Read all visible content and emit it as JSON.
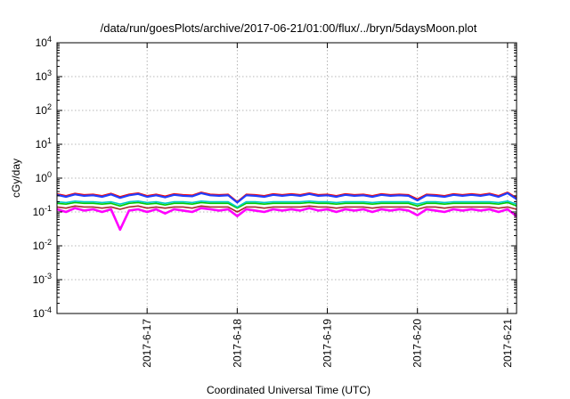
{
  "chart_data": {
    "type": "line",
    "title": "/data/run/goesPlots/archive/2017-06-21/01:00/flux/../bryn/5daysMoon.plot",
    "xlabel": "Coordinated Universal Time (UTC)",
    "ylabel": "cGy/day",
    "yscale": "log",
    "ylim": [
      0.0001,
      10000
    ],
    "xlim": [
      16.0,
      21.1
    ],
    "grid": true,
    "x_unit": "day of June 2017",
    "xticks": [
      {
        "value": 17,
        "label": "2017-6-17"
      },
      {
        "value": 18,
        "label": "2017-6-18"
      },
      {
        "value": 19,
        "label": "2017-6-19"
      },
      {
        "value": 20,
        "label": "2017-6-20"
      },
      {
        "value": 21,
        "label": "2017-6-21"
      }
    ],
    "yticks": [
      {
        "value": 0.0001,
        "base": "10",
        "exp": "-4"
      },
      {
        "value": 0.001,
        "base": "10",
        "exp": "-3"
      },
      {
        "value": 0.01,
        "base": "10",
        "exp": "-2"
      },
      {
        "value": 0.1,
        "base": "10",
        "exp": "-1"
      },
      {
        "value": 1,
        "base": "10",
        "exp": "0"
      },
      {
        "value": 10,
        "base": "10",
        "exp": "1"
      },
      {
        "value": 100,
        "base": "10",
        "exp": "2"
      },
      {
        "value": 1000,
        "base": "10",
        "exp": "3"
      },
      {
        "value": 10000,
        "base": "10",
        "exp": "4"
      }
    ],
    "series": [
      {
        "color": "#ff00ff",
        "values": [
          0.12,
          0.1,
          0.13,
          0.11,
          0.12,
          0.1,
          0.12,
          0.03,
          0.11,
          0.12,
          0.1,
          0.12,
          0.09,
          0.12,
          0.11,
          0.1,
          0.13,
          0.12,
          0.11,
          0.12,
          0.075,
          0.12,
          0.11,
          0.1,
          0.12,
          0.11,
          0.12,
          0.11,
          0.13,
          0.11,
          0.12,
          0.1,
          0.12,
          0.11,
          0.12,
          0.1,
          0.12,
          0.11,
          0.12,
          0.11,
          0.08,
          0.12,
          0.11,
          0.1,
          0.12,
          0.11,
          0.12,
          0.11,
          0.12,
          0.1,
          0.12,
          0.075
        ]
      },
      {
        "color": "#a52a2a",
        "values": [
          0.14,
          0.13,
          0.15,
          0.14,
          0.14,
          0.13,
          0.14,
          0.12,
          0.14,
          0.15,
          0.13,
          0.14,
          0.13,
          0.14,
          0.14,
          0.13,
          0.15,
          0.14,
          0.14,
          0.14,
          0.1,
          0.14,
          0.14,
          0.13,
          0.14,
          0.14,
          0.14,
          0.14,
          0.15,
          0.14,
          0.14,
          0.13,
          0.14,
          0.14,
          0.14,
          0.13,
          0.14,
          0.14,
          0.14,
          0.14,
          0.12,
          0.14,
          0.14,
          0.13,
          0.14,
          0.14,
          0.14,
          0.14,
          0.14,
          0.13,
          0.14,
          0.12
        ]
      },
      {
        "color": "#00cc00",
        "values": [
          0.18,
          0.17,
          0.19,
          0.18,
          0.18,
          0.17,
          0.18,
          0.15,
          0.18,
          0.19,
          0.17,
          0.18,
          0.16,
          0.18,
          0.18,
          0.17,
          0.19,
          0.18,
          0.18,
          0.18,
          0.13,
          0.18,
          0.18,
          0.17,
          0.18,
          0.18,
          0.18,
          0.18,
          0.19,
          0.18,
          0.18,
          0.17,
          0.18,
          0.18,
          0.18,
          0.17,
          0.18,
          0.18,
          0.18,
          0.18,
          0.15,
          0.18,
          0.18,
          0.17,
          0.18,
          0.18,
          0.18,
          0.18,
          0.18,
          0.17,
          0.19,
          0.15
        ]
      },
      {
        "color": "#00cccc",
        "values": [
          0.2,
          0.19,
          0.21,
          0.2,
          0.2,
          0.19,
          0.2,
          0.17,
          0.2,
          0.21,
          0.19,
          0.2,
          0.18,
          0.2,
          0.2,
          0.19,
          0.21,
          0.2,
          0.2,
          0.2,
          0.14,
          0.2,
          0.2,
          0.19,
          0.2,
          0.2,
          0.2,
          0.2,
          0.21,
          0.2,
          0.2,
          0.19,
          0.2,
          0.2,
          0.2,
          0.19,
          0.2,
          0.2,
          0.2,
          0.2,
          0.17,
          0.2,
          0.2,
          0.19,
          0.2,
          0.2,
          0.2,
          0.2,
          0.2,
          0.19,
          0.21,
          0.17
        ]
      },
      {
        "color": "#ff0000",
        "values": [
          0.34,
          0.3,
          0.35,
          0.32,
          0.33,
          0.3,
          0.35,
          0.28,
          0.33,
          0.36,
          0.3,
          0.33,
          0.29,
          0.34,
          0.32,
          0.31,
          0.38,
          0.33,
          0.32,
          0.33,
          0.2,
          0.33,
          0.32,
          0.3,
          0.34,
          0.32,
          0.34,
          0.32,
          0.36,
          0.32,
          0.33,
          0.3,
          0.34,
          0.32,
          0.33,
          0.3,
          0.34,
          0.32,
          0.33,
          0.32,
          0.24,
          0.33,
          0.32,
          0.3,
          0.34,
          0.32,
          0.34,
          0.32,
          0.35,
          0.3,
          0.38,
          0.26
        ]
      },
      {
        "color": "#1f3fff",
        "values": [
          0.32,
          0.28,
          0.33,
          0.3,
          0.31,
          0.28,
          0.33,
          0.26,
          0.31,
          0.34,
          0.28,
          0.31,
          0.27,
          0.32,
          0.3,
          0.29,
          0.36,
          0.31,
          0.3,
          0.31,
          0.19,
          0.31,
          0.3,
          0.28,
          0.32,
          0.3,
          0.32,
          0.3,
          0.34,
          0.3,
          0.31,
          0.28,
          0.32,
          0.3,
          0.31,
          0.28,
          0.32,
          0.3,
          0.31,
          0.3,
          0.22,
          0.31,
          0.3,
          0.28,
          0.32,
          0.3,
          0.32,
          0.3,
          0.33,
          0.28,
          0.36,
          0.24
        ]
      }
    ]
  }
}
